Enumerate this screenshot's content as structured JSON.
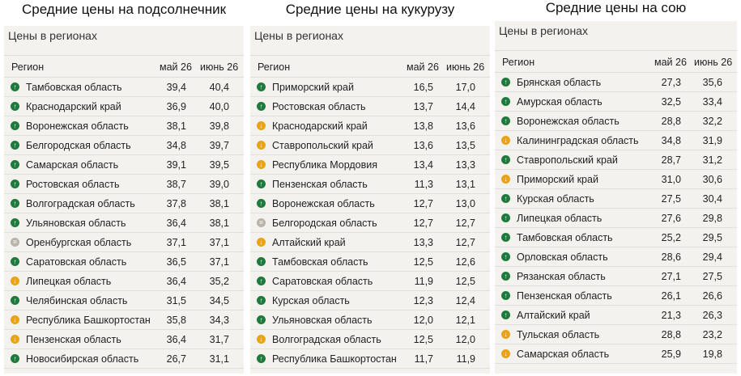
{
  "panels": [
    {
      "title": "Средние цены на подсолнечник",
      "card_title": "Цены в регионах",
      "headers": {
        "region": "Регион",
        "col1": "май 26",
        "col2": "июнь 26"
      },
      "rows": [
        {
          "region": "Тамбовская область",
          "may": "39,4",
          "june": "40,4",
          "trend": "up"
        },
        {
          "region": "Краснодарский край",
          "may": "36,9",
          "june": "40,0",
          "trend": "up"
        },
        {
          "region": "Воронежская область",
          "may": "38,1",
          "june": "39,8",
          "trend": "up"
        },
        {
          "region": "Белгородская область",
          "may": "34,8",
          "june": "39,7",
          "trend": "up"
        },
        {
          "region": "Самарская область",
          "may": "39,1",
          "june": "39,5",
          "trend": "up"
        },
        {
          "region": "Ростовская область",
          "may": "38,7",
          "june": "39,0",
          "trend": "up"
        },
        {
          "region": "Волгоградская область",
          "may": "37,8",
          "june": "38,1",
          "trend": "up"
        },
        {
          "region": "Ульяновская область",
          "may": "36,4",
          "june": "38,1",
          "trend": "up"
        },
        {
          "region": "Оренбургская область",
          "may": "37,1",
          "june": "37,1",
          "trend": "same"
        },
        {
          "region": "Саратовская область",
          "may": "36,5",
          "june": "37,1",
          "trend": "up"
        },
        {
          "region": "Липецкая область",
          "may": "36,4",
          "june": "35,2",
          "trend": "down"
        },
        {
          "region": "Челябинская область",
          "may": "31,5",
          "june": "34,5",
          "trend": "up"
        },
        {
          "region": "Республика Башкортостан",
          "may": "35,8",
          "june": "34,3",
          "trend": "down"
        },
        {
          "region": "Пензенская область",
          "may": "36,4",
          "june": "31,7",
          "trend": "down"
        },
        {
          "region": "Новосибирская область",
          "may": "26,7",
          "june": "31,1",
          "trend": "up"
        }
      ]
    },
    {
      "title": "Средние цены на кукурузу",
      "card_title": "Цены в регионах",
      "headers": {
        "region": "Регион",
        "col1": "май 26",
        "col2": "июнь 26"
      },
      "rows": [
        {
          "region": "Приморский край",
          "may": "16,5",
          "june": "17,0",
          "trend": "up"
        },
        {
          "region": "Ростовская область",
          "may": "13,7",
          "june": "14,4",
          "trend": "up"
        },
        {
          "region": "Краснодарский край",
          "may": "13,8",
          "june": "13,6",
          "trend": "down"
        },
        {
          "region": "Ставропольский край",
          "may": "13,6",
          "june": "13,5",
          "trend": "down"
        },
        {
          "region": "Республика Мордовия",
          "may": "13,4",
          "june": "13,3",
          "trend": "down"
        },
        {
          "region": "Пензенская область",
          "may": "11,3",
          "june": "13,1",
          "trend": "up"
        },
        {
          "region": "Воронежская область",
          "may": "12,7",
          "june": "13,0",
          "trend": "up"
        },
        {
          "region": "Белгородская область",
          "may": "12,7",
          "june": "12,7",
          "trend": "same"
        },
        {
          "region": "Алтайский край",
          "may": "13,3",
          "june": "12,7",
          "trend": "down"
        },
        {
          "region": "Тамбовская область",
          "may": "12,5",
          "june": "12,6",
          "trend": "up"
        },
        {
          "region": "Саратовская область",
          "may": "11,9",
          "june": "12,5",
          "trend": "up"
        },
        {
          "region": "Курская область",
          "may": "12,3",
          "june": "12,4",
          "trend": "up"
        },
        {
          "region": "Ульяновская область",
          "may": "12,0",
          "june": "12,1",
          "trend": "up"
        },
        {
          "region": "Волгоградская область",
          "may": "12,5",
          "june": "12,0",
          "trend": "down"
        },
        {
          "region": "Республика Башкортостан",
          "may": "11,7",
          "june": "11,9",
          "trend": "up"
        }
      ]
    },
    {
      "title": "Средние цены на сою",
      "card_title": "Цены в регионах",
      "headers": {
        "region": "Регион",
        "col1": "май 26",
        "col2": "июнь 26"
      },
      "rows": [
        {
          "region": "Брянская область",
          "may": "27,3",
          "june": "35,6",
          "trend": "up"
        },
        {
          "region": "Амурская область",
          "may": "32,5",
          "june": "33,4",
          "trend": "up"
        },
        {
          "region": "Воронежская область",
          "may": "28,8",
          "june": "32,2",
          "trend": "up"
        },
        {
          "region": "Калининградская область",
          "may": "34,8",
          "june": "31,9",
          "trend": "down"
        },
        {
          "region": "Ставропольский край",
          "may": "28,7",
          "june": "31,2",
          "trend": "up"
        },
        {
          "region": "Приморский край",
          "may": "31,0",
          "june": "30,6",
          "trend": "down"
        },
        {
          "region": "Курская область",
          "may": "27,5",
          "june": "30,4",
          "trend": "up"
        },
        {
          "region": "Липецкая область",
          "may": "27,6",
          "june": "29,8",
          "trend": "up"
        },
        {
          "region": "Тамбовская область",
          "may": "25,2",
          "june": "29,5",
          "trend": "up"
        },
        {
          "region": "Орловская область",
          "may": "28,6",
          "june": "29,4",
          "trend": "up"
        },
        {
          "region": "Рязанская область",
          "may": "27,1",
          "june": "27,5",
          "trend": "up"
        },
        {
          "region": "Пензенская область",
          "may": "26,1",
          "june": "26,6",
          "trend": "up"
        },
        {
          "region": "Алтайский край",
          "may": "21,3",
          "june": "26,3",
          "trend": "up"
        },
        {
          "region": "Тульская область",
          "may": "28,8",
          "june": "23,2",
          "trend": "down"
        },
        {
          "region": "Самарская область",
          "may": "25,9",
          "june": "19,8",
          "trend": "down"
        }
      ]
    }
  ]
}
